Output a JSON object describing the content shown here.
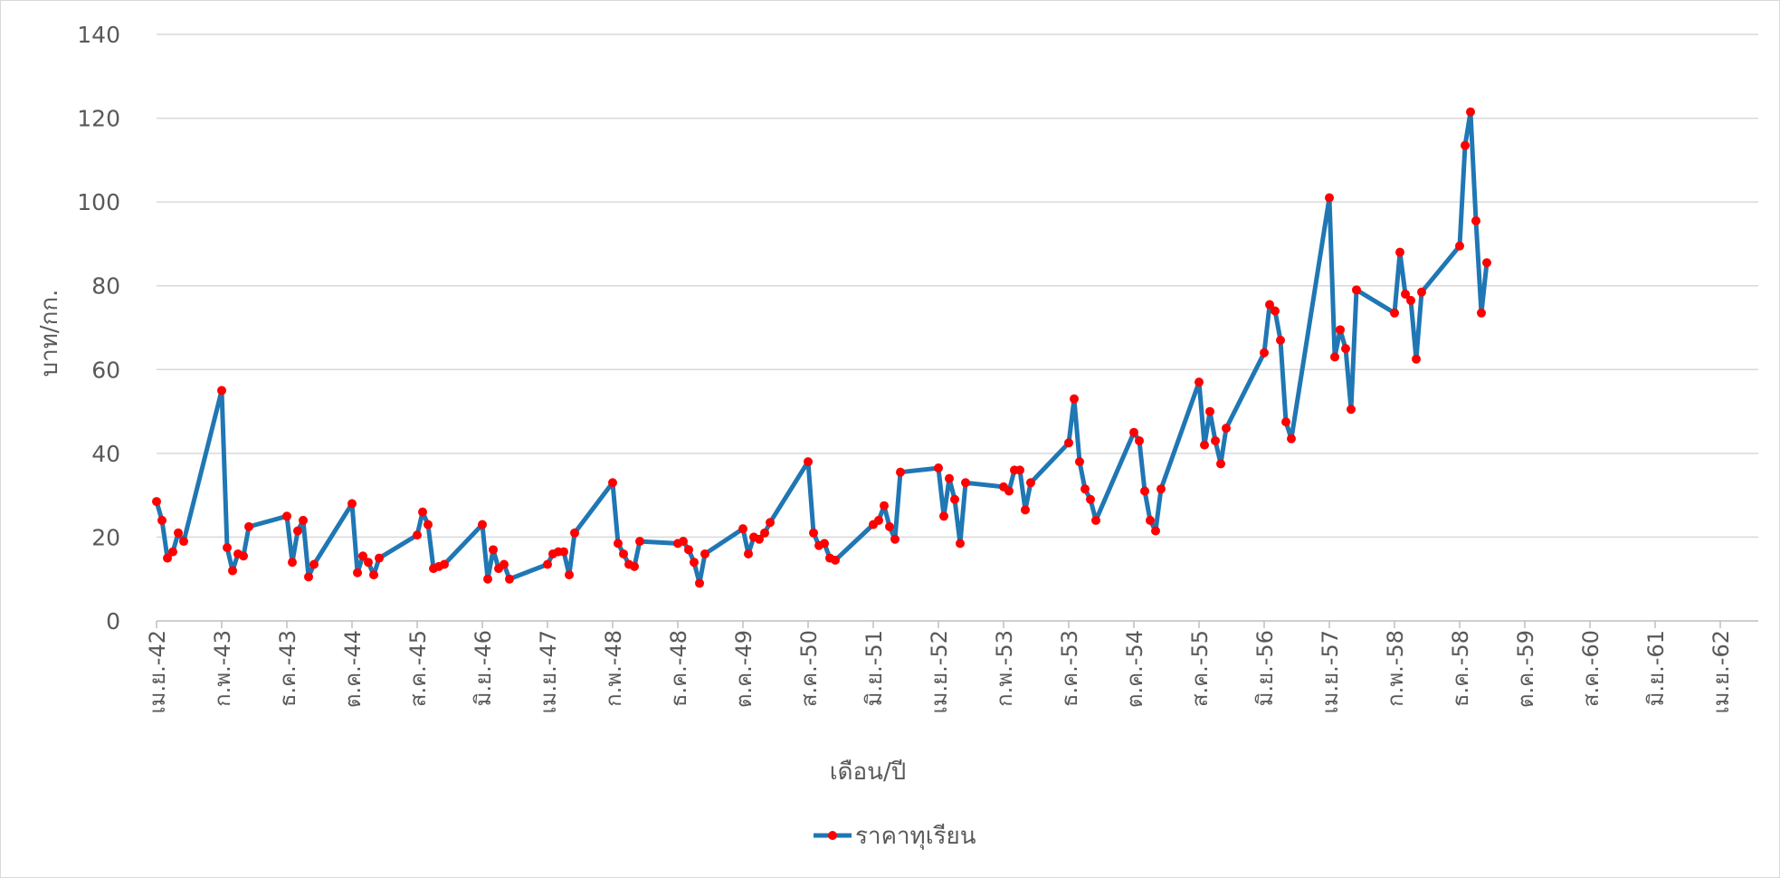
{
  "chart_data": {
    "type": "line",
    "title": "",
    "xlabel": "เดือน/ปี",
    "ylabel": "บาท/กก.",
    "ylim": [
      0,
      140
    ],
    "y_ticks": [
      0,
      20,
      40,
      60,
      80,
      100,
      120,
      140
    ],
    "grid": true,
    "legend_position": "bottom",
    "x_ticks": [
      "เม.ย.-42",
      "ก.พ.-43",
      "ธ.ค.-43",
      "ต.ค.-44",
      "ส.ค.-45",
      "มิ.ย.-46",
      "เม.ย.-47",
      "ก.พ.-48",
      "ธ.ค.-48",
      "ต.ค.-49",
      "ส.ค.-50",
      "มิ.ย.-51",
      "เม.ย.-52",
      "ก.พ.-53",
      "ธ.ค.-53",
      "ต.ค.-54",
      "ส.ค.-55",
      "มิ.ย.-56",
      "เม.ย.-57",
      "ก.พ.-58",
      "ธ.ค.-58",
      "ต.ค.-59",
      "ส.ค.-60",
      "มิ.ย.-61",
      "เม.ย.-62"
    ],
    "x_index_range": [
      0,
      245
    ],
    "series": [
      {
        "name": "ราคาทุเรียน",
        "line_color": "#1f77b4",
        "marker_color": "#ff0000",
        "points": [
          [
            0,
            28.5
          ],
          [
            1,
            24
          ],
          [
            2,
            15
          ],
          [
            3,
            16.5
          ],
          [
            4,
            21
          ],
          [
            5,
            19
          ],
          [
            12,
            55
          ],
          [
            13,
            17.5
          ],
          [
            14,
            12
          ],
          [
            15,
            16
          ],
          [
            16,
            15.5
          ],
          [
            17,
            22.5
          ],
          [
            24,
            25
          ],
          [
            25,
            14
          ],
          [
            26,
            21.5
          ],
          [
            27,
            24
          ],
          [
            28,
            10.5
          ],
          [
            29,
            13.5
          ],
          [
            36,
            28
          ],
          [
            37,
            11.5
          ],
          [
            38,
            15.5
          ],
          [
            39,
            14
          ],
          [
            40,
            11
          ],
          [
            41,
            15
          ],
          [
            48,
            20.5
          ],
          [
            49,
            26
          ],
          [
            50,
            23
          ],
          [
            51,
            12.5
          ],
          [
            52,
            13
          ],
          [
            53,
            13.5
          ],
          [
            60,
            23
          ],
          [
            61,
            10
          ],
          [
            62,
            17
          ],
          [
            63,
            12.5
          ],
          [
            64,
            13.5
          ],
          [
            65,
            10
          ],
          [
            72,
            13.5
          ],
          [
            73,
            16
          ],
          [
            74,
            16.5
          ],
          [
            75,
            16.5
          ],
          [
            76,
            11
          ],
          [
            77,
            21
          ],
          [
            84,
            33
          ],
          [
            85,
            18.5
          ],
          [
            86,
            16
          ],
          [
            87,
            13.5
          ],
          [
            88,
            13
          ],
          [
            89,
            19
          ],
          [
            96,
            18.5
          ],
          [
            97,
            19
          ],
          [
            98,
            17
          ],
          [
            99,
            14
          ],
          [
            100,
            9
          ],
          [
            101,
            16
          ],
          [
            108,
            22
          ],
          [
            109,
            16
          ],
          [
            110,
            20
          ],
          [
            111,
            19.5
          ],
          [
            112,
            21
          ],
          [
            113,
            23.5
          ],
          [
            120,
            38
          ],
          [
            121,
            21
          ],
          [
            122,
            18
          ],
          [
            123,
            18.5
          ],
          [
            124,
            15
          ],
          [
            125,
            14.5
          ],
          [
            132,
            23
          ],
          [
            133,
            24
          ],
          [
            134,
            27.5
          ],
          [
            135,
            22.5
          ],
          [
            136,
            19.5
          ],
          [
            137,
            35.5
          ],
          [
            144,
            36.5
          ],
          [
            145,
            25
          ],
          [
            146,
            34
          ],
          [
            147,
            29
          ],
          [
            148,
            18.5
          ],
          [
            149,
            33
          ],
          [
            156,
            32
          ],
          [
            157,
            31
          ],
          [
            158,
            36
          ],
          [
            159,
            36
          ],
          [
            160,
            26.5
          ],
          [
            161,
            33
          ],
          [
            168,
            42.5
          ],
          [
            169,
            53
          ],
          [
            170,
            38
          ],
          [
            171,
            31.5
          ],
          [
            172,
            29
          ],
          [
            173,
            24
          ],
          [
            180,
            45
          ],
          [
            181,
            43
          ],
          [
            182,
            31
          ],
          [
            183,
            24
          ],
          [
            184,
            21.5
          ],
          [
            185,
            31.5
          ],
          [
            192,
            57
          ],
          [
            193,
            42
          ],
          [
            194,
            50
          ],
          [
            195,
            43
          ],
          [
            196,
            37.5
          ],
          [
            197,
            46
          ],
          [
            204,
            64
          ],
          [
            205,
            75.5
          ],
          [
            206,
            74
          ],
          [
            207,
            67
          ],
          [
            208,
            47.5
          ],
          [
            209,
            43.5
          ],
          [
            216,
            101
          ],
          [
            217,
            63
          ],
          [
            218,
            69.5
          ],
          [
            219,
            65
          ],
          [
            220,
            50.5
          ],
          [
            221,
            79
          ],
          [
            228,
            73.5
          ],
          [
            229,
            88
          ],
          [
            230,
            78
          ],
          [
            231,
            76.5
          ],
          [
            232,
            62.5
          ],
          [
            233,
            78.5
          ],
          [
            240,
            89.5
          ],
          [
            241,
            113.5
          ],
          [
            242,
            121.5
          ],
          [
            243,
            95.5
          ],
          [
            244,
            73.5
          ],
          [
            245,
            85.5
          ]
        ]
      }
    ]
  }
}
